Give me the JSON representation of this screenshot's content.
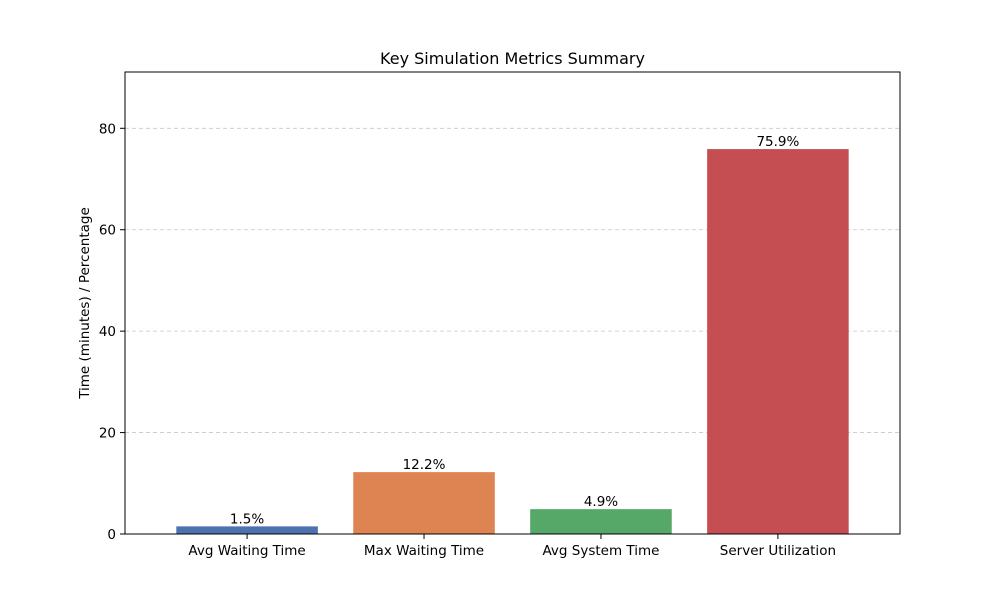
{
  "chart_data": {
    "type": "bar",
    "title": "Key Simulation Metrics Summary",
    "xlabel": "",
    "ylabel": "Time (minutes) / Percentage",
    "categories": [
      "Avg Waiting Time",
      "Max Waiting Time",
      "Avg System Time",
      "Server Utilization"
    ],
    "values": [
      1.5,
      12.2,
      4.9,
      75.9
    ],
    "data_labels": [
      "1.5%",
      "12.2%",
      "4.9%",
      "75.9%"
    ],
    "colors": [
      "#4c72b0",
      "#dd8452",
      "#55a868",
      "#c44e52"
    ],
    "ylim": [
      0,
      91.1
    ],
    "yticks": [
      0,
      20,
      40,
      60,
      80
    ],
    "ytick_labels": [
      "0",
      "20",
      "40",
      "60",
      "80"
    ],
    "grid": "y-dashed",
    "legend": "none"
  }
}
